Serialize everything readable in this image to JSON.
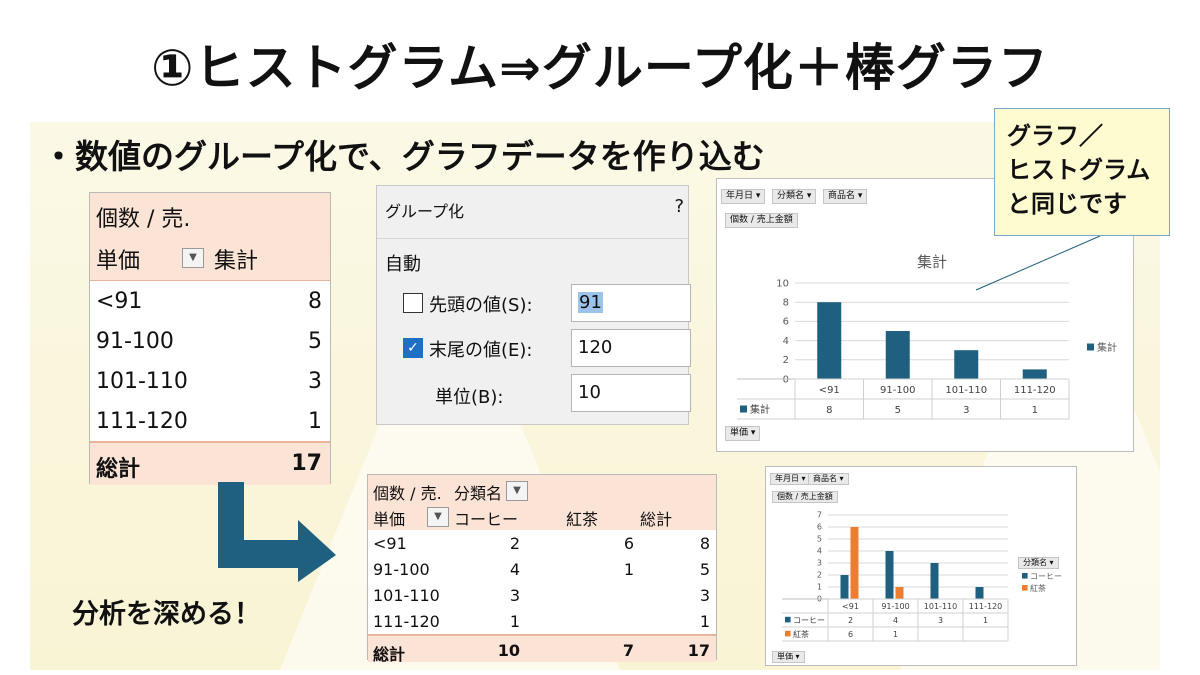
{
  "title": "①ヒストグラム⇒グループ化＋棒グラフ",
  "bullet": "・数値のグループ化で、グラフデータを作り込む",
  "callout": [
    "グラフ／",
    "ヒストグラム",
    "と同じです"
  ],
  "deeper": "分析を深める！",
  "colors": {
    "blue": "#1f5f7f",
    "orange": "#ed7d31",
    "pivot_header": "#fbe3d6",
    "background": "#faf6dc"
  },
  "pivot1": {
    "header_value": "個数 / 売.",
    "row_field": "単価",
    "col_label": "集計",
    "rows": [
      {
        "label": "<91",
        "value": "8"
      },
      {
        "label": "91-100",
        "value": "5"
      },
      {
        "label": "101-110",
        "value": "3"
      },
      {
        "label": "111-120",
        "value": "1"
      }
    ],
    "total_label": "総計",
    "total_value": "17"
  },
  "dialog": {
    "title": "グループ化",
    "help": "?",
    "section": "自動",
    "start_label": "先頭の値(S):",
    "start_value": "91",
    "end_label": "末尾の値(E):",
    "end_value": "120",
    "step_label": "単位(B):",
    "step_value": "10"
  },
  "chart1": {
    "filters": [
      "年月日",
      "分類名",
      "商品名"
    ],
    "value_button": "個数 / 売上金額",
    "axis_button": "単価",
    "legend_label": "集計"
  },
  "chart2": {
    "filters": [
      "年月日",
      "商品名"
    ],
    "value_button": "個数 / 売上金額",
    "axis_button": "単価",
    "legend_title": "分類名"
  },
  "chart_data": [
    {
      "type": "bar",
      "title": "集計",
      "categories": [
        "<91",
        "91-100",
        "101-110",
        "111-120"
      ],
      "series": [
        {
          "name": "集計",
          "values": [
            8,
            5,
            3,
            1
          ]
        }
      ],
      "ylim": [
        0,
        10
      ],
      "yticks": [
        0,
        2,
        4,
        6,
        8,
        10
      ],
      "grid": true,
      "legend": "right",
      "data_table": true
    },
    {
      "type": "bar",
      "categories": [
        "<91",
        "91-100",
        "101-110",
        "111-120"
      ],
      "series": [
        {
          "name": "コーヒー",
          "values": [
            2,
            4,
            3,
            1
          ]
        },
        {
          "name": "紅茶",
          "values": [
            6,
            1,
            null,
            null
          ]
        }
      ],
      "ylim": [
        0,
        7
      ],
      "yticks": [
        0,
        1,
        2,
        3,
        4,
        5,
        6,
        7
      ],
      "grid": true,
      "legend": "right",
      "data_table": true
    }
  ],
  "pivot2": {
    "header_value": "個数 / 売.",
    "col_field": "分類名",
    "row_field": "単価",
    "col_headers": [
      "コーヒー",
      "紅茶",
      "総計"
    ],
    "rows": [
      {
        "label": "<91",
        "values": [
          "2",
          "6",
          "8"
        ]
      },
      {
        "label": "91-100",
        "values": [
          "4",
          "1",
          "5"
        ]
      },
      {
        "label": "101-110",
        "values": [
          "3",
          "",
          "3"
        ]
      },
      {
        "label": "111-120",
        "values": [
          "1",
          "",
          "1"
        ]
      }
    ],
    "total_label": "総計",
    "total_values": [
      "10",
      "7",
      "17"
    ]
  }
}
